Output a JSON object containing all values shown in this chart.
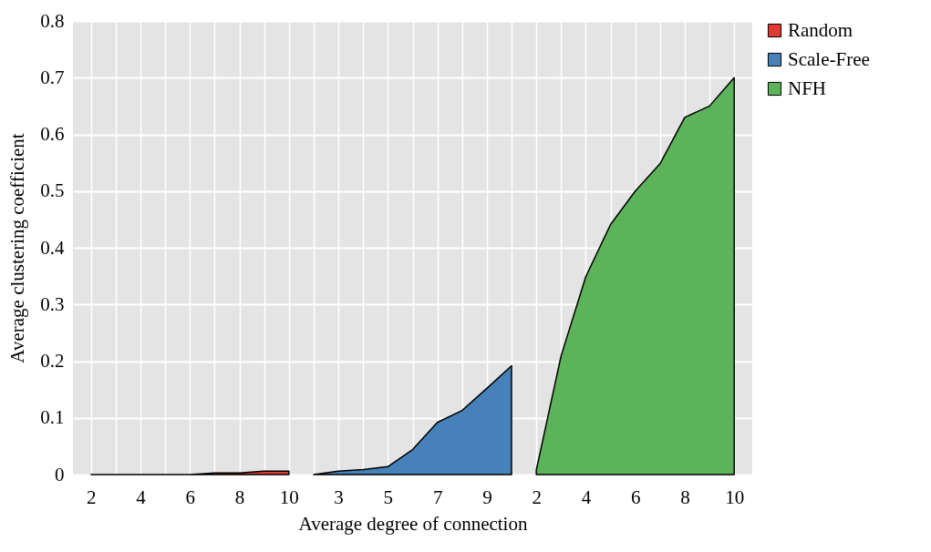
{
  "chart_data": {
    "type": "area",
    "xlabel": "Average  degree  of connection",
    "ylabel": "Average  clustering  coefficient",
    "categories": [
      "2",
      null,
      "4",
      null,
      "6",
      null,
      "8",
      null,
      "10",
      null,
      "3",
      null,
      "5",
      null,
      "7",
      null,
      "9",
      null,
      "2",
      null,
      "4",
      null,
      "6",
      null,
      "8",
      null,
      "10"
    ],
    "series": [
      {
        "name": "Random",
        "color": "#e03a33",
        "values": [
          0,
          0,
          0,
          0,
          0,
          0.003,
          0.003,
          0.006,
          0.006,
          null,
          null,
          null,
          null,
          null,
          null,
          null,
          null,
          null,
          null,
          null,
          null,
          null,
          null,
          null,
          null,
          null,
          null
        ]
      },
      {
        "name": "Scale-Free",
        "color": "#4682b9",
        "values": [
          null,
          null,
          null,
          null,
          null,
          null,
          null,
          null,
          null,
          0,
          0.006,
          0.009,
          0.014,
          0.044,
          0.092,
          0.113,
          0.152,
          0.192,
          null,
          null,
          null,
          null,
          null,
          null,
          null,
          null,
          null
        ]
      },
      {
        "name": "NFH",
        "color": "#5cb35a",
        "values": [
          null,
          null,
          null,
          null,
          null,
          null,
          null,
          null,
          null,
          null,
          null,
          null,
          null,
          null,
          null,
          null,
          null,
          null,
          0.008,
          0.209,
          0.349,
          0.441,
          0.5,
          0.548,
          0.63,
          0.65,
          0.7
        ]
      }
    ],
    "ylim": [
      0,
      0.8
    ],
    "yticks": [
      0,
      0.1,
      0.2,
      0.3,
      0.4,
      0.5,
      0.6,
      0.7,
      0.8
    ],
    "grid": true,
    "legend": "right"
  }
}
